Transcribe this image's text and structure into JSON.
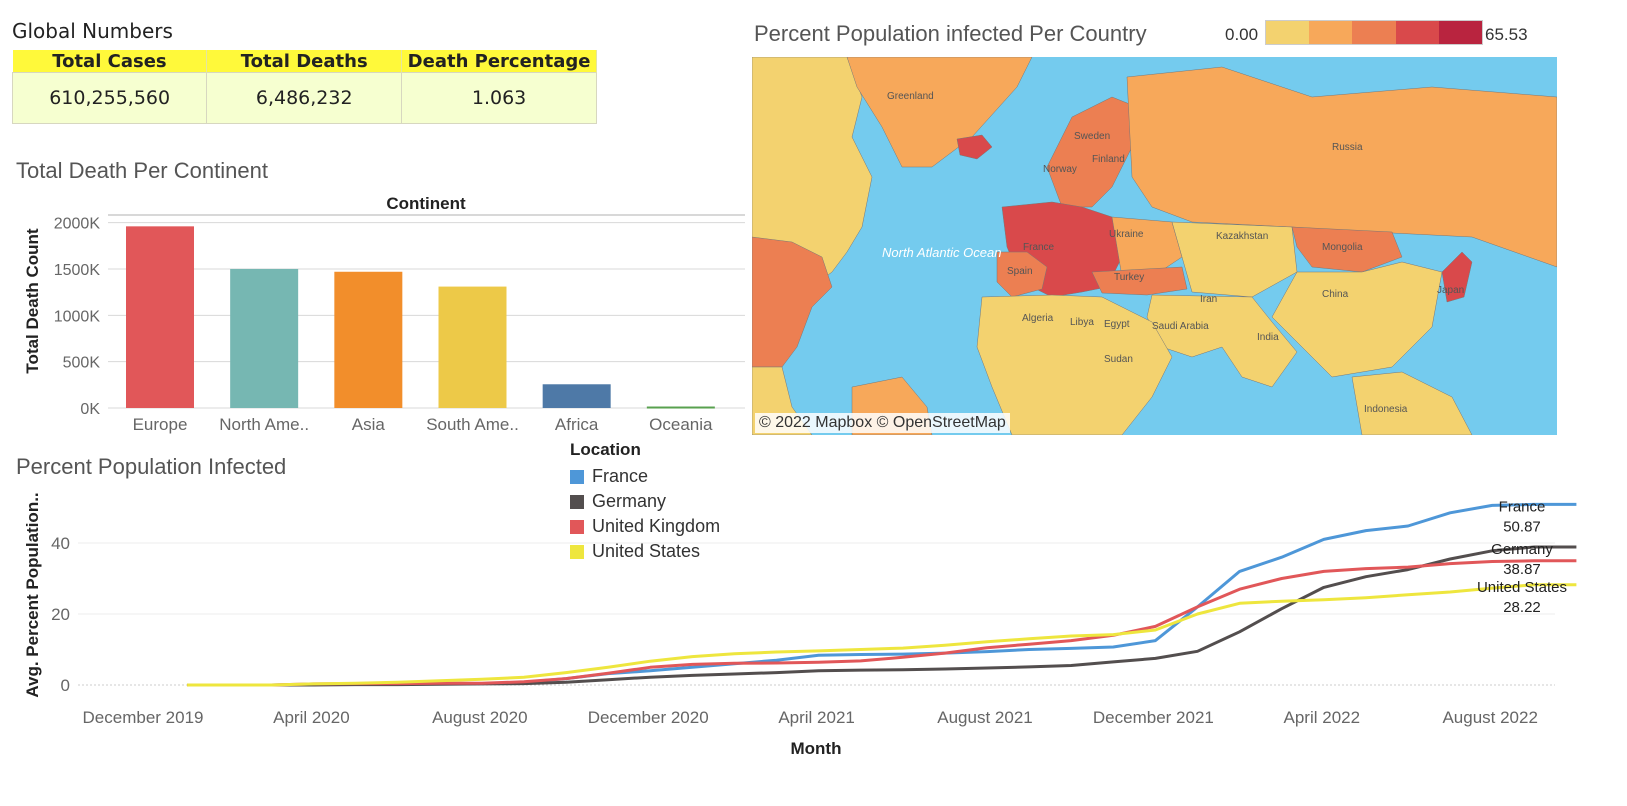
{
  "global": {
    "title": "Global Numbers",
    "headers": [
      "Total Cases",
      "Total Deaths",
      "Death Percentage"
    ],
    "values": [
      "610,255,560",
      "6,486,232",
      "1.063"
    ]
  },
  "map": {
    "title": "Percent Population infected Per Country",
    "legend_min": "0.00",
    "legend_max": "65.53",
    "legend_colors": [
      "#f3d26f",
      "#f7a85a",
      "#ec7f52",
      "#d9494b",
      "#b9243f"
    ],
    "attribution": "© 2022 Mapbox © OpenStreetMap",
    "labels": [
      "Greenland",
      "Sweden",
      "Norway",
      "Finland",
      "Russia",
      "Ukraine",
      "Kazakhstan",
      "Mongolia",
      "France",
      "Spain",
      "Turkey",
      "Iran",
      "China",
      "Japan",
      "India",
      "Algeria",
      "Libya",
      "Egypt",
      "Saudi Arabia",
      "Sudan",
      "North Atlantic Ocean",
      "Indonesia"
    ]
  },
  "bar": {
    "title": "Total Death Per Continent",
    "header": "Continent",
    "ylabel": "Total Death Count"
  },
  "line": {
    "title": "Percent Population Infected",
    "xlabel": "Month",
    "ylabel": "Avg. Percent Population..",
    "legend_title": "Location"
  },
  "chart_data": [
    {
      "type": "bar",
      "title": "Total Death Per Continent",
      "xlabel": "Continent",
      "ylabel": "Total Death Count",
      "categories": [
        "Europe",
        "North Ame..",
        "Asia",
        "South Ame..",
        "Africa",
        "Oceania"
      ],
      "values": [
        1960000,
        1500000,
        1470000,
        1310000,
        256000,
        16000
      ],
      "colors": [
        "#e15759",
        "#76b7b2",
        "#f28e2b",
        "#edc948",
        "#4e79a7",
        "#59a14f"
      ],
      "yticks": [
        0,
        500000,
        1000000,
        1500000,
        2000000
      ],
      "ytick_labels": [
        "0K",
        "500K",
        "1000K",
        "1500K",
        "2000K"
      ],
      "ylim": [
        0,
        2050000
      ],
      "grid": true
    },
    {
      "type": "line",
      "title": "Percent Population Infected",
      "xlabel": "Month",
      "ylabel": "Avg. Percent Population..",
      "x": [
        "2020-01",
        "2020-02",
        "2020-03",
        "2020-04",
        "2020-05",
        "2020-06",
        "2020-07",
        "2020-08",
        "2020-09",
        "2020-10",
        "2020-11",
        "2020-12",
        "2021-01",
        "2021-02",
        "2021-03",
        "2021-04",
        "2021-05",
        "2021-06",
        "2021-07",
        "2021-08",
        "2021-09",
        "2021-10",
        "2021-11",
        "2021-12",
        "2022-01",
        "2022-02",
        "2022-03",
        "2022-04",
        "2022-05",
        "2022-06",
        "2022-07",
        "2022-08",
        "2022-09",
        "2022-10"
      ],
      "xticks": [
        "December 2019",
        "April 2020",
        "August 2020",
        "December 2020",
        "April 2021",
        "August 2021",
        "December 2021",
        "April 2022",
        "August 2022"
      ],
      "yticks": [
        0,
        20,
        40
      ],
      "ylim": [
        -2,
        55
      ],
      "grid": true,
      "legend_position": "top-center",
      "series": [
        {
          "name": "France",
          "color": "#4e97d8",
          "values": [
            0,
            0,
            0,
            0.2,
            0.3,
            0.3,
            0.3,
            0.4,
            0.8,
            1.8,
            3.2,
            4,
            5,
            6,
            7,
            8.4,
            8.6,
            8.7,
            9,
            9.4,
            10,
            10.3,
            10.7,
            12.5,
            22,
            32,
            36,
            41,
            43.5,
            44.8,
            48.5,
            50.6,
            50.87,
            50.87
          ],
          "end_label": "France",
          "end_value": "50.87"
        },
        {
          "name": "Germany",
          "color": "#534e4e",
          "values": [
            0,
            0,
            0,
            0,
            0.1,
            0.1,
            0.2,
            0.3,
            0.4,
            0.8,
            1.5,
            2.2,
            2.7,
            3.1,
            3.5,
            4,
            4.2,
            4.3,
            4.5,
            4.8,
            5.1,
            5.5,
            6.5,
            7.5,
            9.5,
            15,
            21.5,
            27.5,
            30.5,
            32.5,
            35.5,
            37.8,
            38.87,
            38.87
          ],
          "end_label": "Germany",
          "end_value": "38.87"
        },
        {
          "name": "United Kingdom",
          "color": "#e15759",
          "values": [
            0,
            0,
            0,
            0.3,
            0.4,
            0.4,
            0.5,
            0.5,
            0.9,
            1.8,
            3.3,
            5,
            5.8,
            6.1,
            6.2,
            6.4,
            6.8,
            7.8,
            9,
            10.5,
            11.5,
            12.5,
            14,
            16.5,
            22,
            27,
            30,
            32,
            32.8,
            33.2,
            34.2,
            34.8,
            35,
            35
          ],
          "end_label": "",
          "end_value": ""
        },
        {
          "name": "United States",
          "color": "#eee63e",
          "values": [
            0,
            0,
            0,
            0.3,
            0.5,
            0.8,
            1.2,
            1.6,
            2.2,
            3.5,
            5,
            6.7,
            8,
            8.8,
            9.3,
            9.6,
            10,
            10.4,
            11.2,
            12.2,
            13,
            13.8,
            14.2,
            15.5,
            20,
            23,
            23.6,
            24,
            24.6,
            25.4,
            26.2,
            27.3,
            28.22,
            28.22
          ],
          "end_label": "United States",
          "end_value": "28.22"
        }
      ]
    }
  ]
}
